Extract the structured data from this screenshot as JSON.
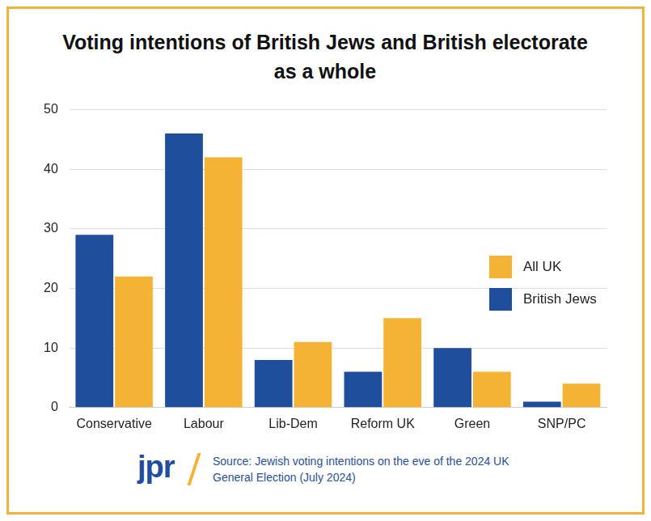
{
  "chart_data": {
    "type": "bar",
    "title": "Voting intentions of British Jews and British electorate as a whole",
    "categories": [
      "Conservative",
      "Labour",
      "Lib-Dem",
      "Reform UK",
      "Green",
      "SNP/PC"
    ],
    "series": [
      {
        "name": "British Jews",
        "color": "#1f4e9c",
        "values": [
          29,
          46,
          8,
          6,
          10,
          1
        ]
      },
      {
        "name": "All UK",
        "color": "#f5b335",
        "values": [
          22,
          42,
          11,
          15,
          6,
          4
        ]
      }
    ],
    "ylim": [
      0,
      50
    ],
    "yticks": [
      0,
      10,
      20,
      30,
      40,
      50
    ],
    "grid": true,
    "legend": "right",
    "logo": "jpr",
    "source": "Source: Jewish voting intentions on the eve of the 2024 UK General Election (July 2024)"
  }
}
